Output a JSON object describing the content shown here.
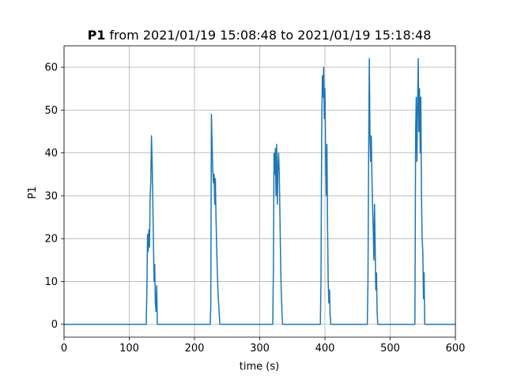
{
  "chart_data": {
    "type": "line",
    "title_bold": "P1",
    "title_rest": " from 2021/01/19 15:08:48 to 2021/01/19 15:18:48",
    "xlabel": "time (s)",
    "ylabel": "P1",
    "xlim": [
      0,
      600
    ],
    "ylim": [
      -3,
      65
    ],
    "x_ticks": [
      0,
      100,
      200,
      300,
      400,
      500,
      600
    ],
    "y_ticks": [
      0,
      10,
      20,
      30,
      40,
      50,
      60
    ],
    "grid": true,
    "line_color": "#1f77b4",
    "series": [
      {
        "x": [
          0,
          126,
          127,
          128,
          129,
          130,
          131,
          132,
          133,
          134,
          135,
          136,
          137,
          138,
          139,
          140,
          141,
          142,
          143,
          144,
          224,
          225,
          226,
          227,
          228,
          229,
          230,
          231,
          232,
          233,
          234,
          235,
          236,
          237,
          238,
          239,
          240,
          320,
          321,
          322,
          323,
          324,
          325,
          326,
          327,
          328,
          329,
          330,
          331,
          332,
          333,
          334,
          335,
          336,
          337,
          393,
          394,
          395,
          396,
          397,
          398,
          399,
          400,
          401,
          402,
          403,
          404,
          405,
          406,
          407,
          408,
          409,
          410,
          465,
          466,
          467,
          468,
          469,
          470,
          471,
          472,
          473,
          474,
          475,
          476,
          477,
          478,
          479,
          480,
          481,
          537,
          538,
          539,
          540,
          541,
          542,
          543,
          544,
          545,
          546,
          547,
          548,
          549,
          550,
          551,
          552,
          553,
          554,
          600
        ],
        "y": [
          0,
          0,
          8,
          21,
          17,
          22,
          18,
          30,
          33,
          44,
          38,
          30,
          20,
          10,
          14,
          5,
          3,
          9,
          0,
          0,
          0,
          4,
          49,
          42,
          36,
          33,
          35,
          28,
          34,
          25,
          18,
          12,
          8,
          5,
          2,
          0,
          0,
          0,
          13,
          40,
          35,
          41,
          30,
          42,
          28,
          37,
          40,
          35,
          25,
          15,
          8,
          3,
          0,
          0,
          0,
          0,
          10,
          45,
          58,
          53,
          60,
          48,
          55,
          40,
          30,
          42,
          23,
          10,
          5,
          8,
          2,
          0,
          0,
          0,
          10,
          40,
          62,
          45,
          38,
          44,
          35,
          28,
          22,
          15,
          28,
          18,
          8,
          12,
          3,
          0,
          0,
          0,
          45,
          53,
          38,
          50,
          62,
          45,
          55,
          40,
          53,
          30,
          20,
          17,
          6,
          12,
          0,
          0,
          0
        ]
      }
    ]
  }
}
